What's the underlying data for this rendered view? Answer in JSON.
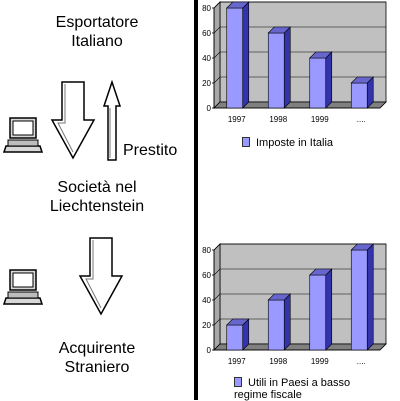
{
  "flow": {
    "exporter": [
      "Esportatore",
      "Italiano"
    ],
    "company": [
      "Società nel",
      "Liechtenstein"
    ],
    "buyer": [
      "Acquirente",
      "Straniero"
    ],
    "loan_label": "Prestito"
  },
  "icons": {
    "computer": "computer-icon",
    "down_arrow": "outline-down-arrow",
    "up_arrow": "outline-up-arrow"
  },
  "colors": {
    "bar_face": "#9999ff",
    "bar_side": "#3333aa",
    "bar_top": "#6666cc",
    "plot_back": "#c0c0c0",
    "plot_floor": "#808080"
  },
  "chart_data": [
    {
      "type": "bar",
      "categories": [
        "1997",
        "1998",
        "1999",
        "...."
      ],
      "series": [
        {
          "name": "Imposte in Italia",
          "values": [
            80,
            60,
            40,
            20
          ]
        }
      ],
      "ylim": [
        0,
        80
      ],
      "yticks": [
        0,
        20,
        40,
        60,
        80
      ],
      "grid": true,
      "legend": "bottom"
    },
    {
      "type": "bar",
      "categories": [
        "1997",
        "1998",
        "1999",
        "...."
      ],
      "series": [
        {
          "name": "Utili in Paesi a basso regime fiscale",
          "values": [
            20,
            40,
            60,
            80
          ]
        }
      ],
      "ylim": [
        0,
        80
      ],
      "yticks": [
        0,
        20,
        40,
        60,
        80
      ],
      "grid": true,
      "legend": "bottom"
    }
  ]
}
